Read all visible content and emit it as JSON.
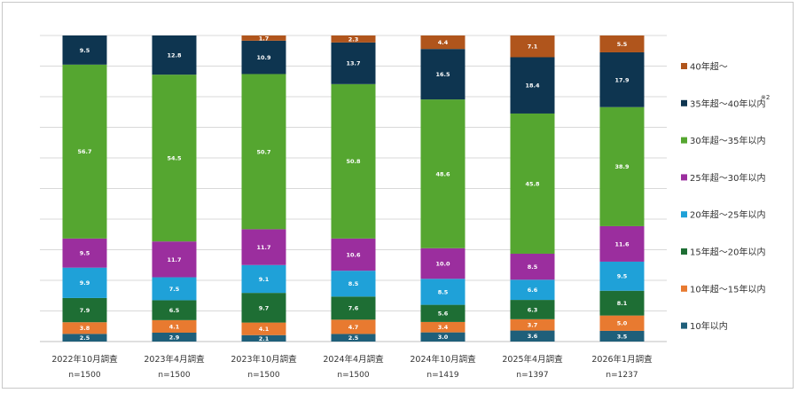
{
  "chart_data": {
    "type": "bar",
    "stacked": true,
    "ylim": [
      0,
      100
    ],
    "grid": true,
    "legend_position": "right",
    "categories": [
      "2022年10月調査",
      "2023年4月調査",
      "2023年10月調査",
      "2024年4月調査",
      "2024年10月調査",
      "2025年4月調査",
      "2026年1月調査"
    ],
    "sample_sizes": [
      "n=1500",
      "n=1500",
      "n=1500",
      "n=1500",
      "n=1419",
      "n=1397",
      "n=1237"
    ],
    "series": [
      {
        "name": "10年以内",
        "color": "#1f5f7a",
        "values": [
          2.5,
          2.9,
          2.1,
          2.5,
          3.0,
          3.6,
          3.5
        ]
      },
      {
        "name": "10年超～15年以内",
        "color": "#e87a30",
        "values": [
          3.8,
          4.1,
          4.1,
          4.7,
          3.4,
          3.7,
          5.0
        ]
      },
      {
        "name": "15年超～20年以内",
        "color": "#1e6e34",
        "values": [
          7.9,
          6.5,
          9.7,
          7.6,
          5.6,
          6.3,
          8.1
        ]
      },
      {
        "name": "20年超～25年以内",
        "color": "#1fa1d8",
        "values": [
          9.9,
          7.5,
          9.1,
          8.5,
          8.5,
          6.6,
          9.5
        ]
      },
      {
        "name": "25年超～30年以内",
        "color": "#9b2e9e",
        "values": [
          9.5,
          11.7,
          11.7,
          10.6,
          10.0,
          8.5,
          11.6
        ]
      },
      {
        "name": "30年超～35年以内",
        "color": "#55a630",
        "values": [
          56.7,
          54.5,
          50.7,
          50.8,
          48.6,
          45.8,
          38.9
        ]
      },
      {
        "name": "35年超～40年以内",
        "color": "#0e3550",
        "values": [
          9.5,
          12.8,
          10.9,
          13.7,
          16.5,
          18.4,
          17.9
        ]
      },
      {
        "name": "40年超～",
        "color": "#b0551c",
        "values": [
          null,
          null,
          1.7,
          2.3,
          4.4,
          7.1,
          5.5
        ]
      }
    ],
    "legend_note": "※2"
  }
}
